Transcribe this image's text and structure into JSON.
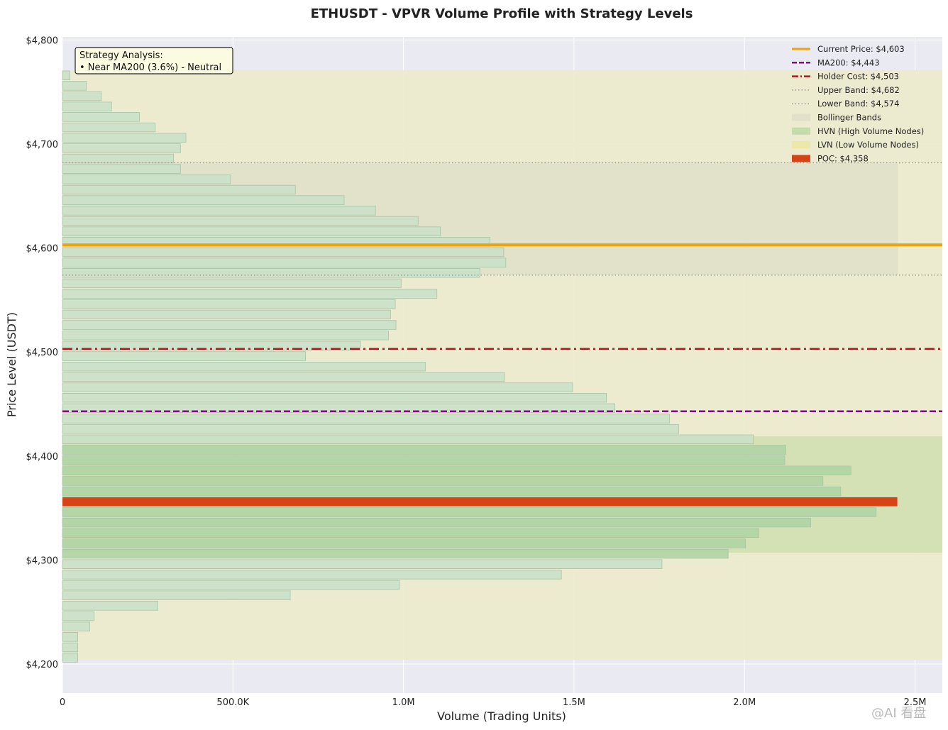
{
  "chart_data": {
    "type": "bar",
    "orientation": "horizontal",
    "title": "ETHUSDT - VPVR Volume Profile with Strategy Levels",
    "xlabel": "Volume (Trading Units)",
    "ylabel": "Price Level (USDT)",
    "xlim": [
      0,
      2580000
    ],
    "ylim": [
      4172,
      4803
    ],
    "x_ticks": [
      0,
      500000,
      1000000,
      1500000,
      2000000,
      2500000
    ],
    "x_tick_labels": [
      "0",
      "500.0K",
      "1.0M",
      "1.5M",
      "2.0M",
      "2.5M"
    ],
    "y_ticks": [
      4200,
      4300,
      4400,
      4500,
      4600,
      4700,
      4800
    ],
    "y_tick_labels": [
      "$4,200",
      "$4,300",
      "$4,400",
      "$4,500",
      "$4,600",
      "$4,700",
      "$4,800"
    ],
    "grid": true,
    "legend_position": "top-right",
    "bins": {
      "price": [
        4206,
        4216,
        4226,
        4236,
        4246,
        4256,
        4266,
        4276,
        4286,
        4296,
        4306,
        4316,
        4326,
        4336,
        4346,
        4356,
        4366,
        4376,
        4386,
        4396,
        4406,
        4416,
        4426,
        4436,
        4446,
        4456,
        4466,
        4476,
        4486,
        4496,
        4506,
        4516,
        4526,
        4536,
        4546,
        4556,
        4566,
        4576,
        4586,
        4596,
        4606,
        4616,
        4626,
        4636,
        4646,
        4656,
        4666,
        4676,
        4686,
        4696,
        4706,
        4716,
        4726,
        4736,
        4746,
        4756,
        4766
      ],
      "volume": [
        45000,
        45000,
        45000,
        80000,
        93000,
        280000,
        668000,
        988000,
        1463000,
        1758000,
        1952000,
        2003000,
        2042000,
        2194000,
        2386000,
        2448000,
        2282000,
        2230000,
        2312000,
        2118000,
        2121000,
        2026000,
        1807000,
        1780000,
        1620000,
        1595000,
        1496000,
        1296000,
        1064000,
        713000,
        874000,
        956000,
        978000,
        962000,
        976000,
        1098000,
        993000,
        1224000,
        1300000,
        1294000,
        1253000,
        1108000,
        1043000,
        918000,
        826000,
        683000,
        493000,
        346000,
        326000,
        346000,
        362000,
        272000,
        226000,
        144000,
        114000,
        70000,
        22000
      ],
      "zone": [
        "lvn",
        "lvn",
        "lvn",
        "lvn",
        "lvn",
        "lvn",
        "lvn",
        "lvn",
        "lvn",
        "lvn",
        "hvn",
        "hvn",
        "hvn",
        "hvn",
        "hvn",
        "poc",
        "hvn",
        "hvn",
        "hvn",
        "hvn",
        "hvn",
        "lvn",
        "lvn",
        "lvn",
        "lvn",
        "lvn",
        "lvn",
        "lvn",
        "lvn",
        "lvn",
        "lvn",
        "lvn",
        "lvn",
        "lvn",
        "lvn",
        "lvn",
        "lvn",
        "lvn",
        "lvn",
        "lvn",
        "lvn",
        "lvn",
        "lvn",
        "lvn",
        "lvn",
        "lvn",
        "lvn",
        "lvn",
        "lvn",
        "lvn",
        "lvn",
        "lvn",
        "lvn",
        "lvn",
        "lvn",
        "lvn",
        "lvn"
      ]
    },
    "levels": {
      "current_price": 4603,
      "ma200": 4443,
      "holder_cost": 4503,
      "upper_band": 4682,
      "lower_band": 4574,
      "poc": 4358
    },
    "zones": {
      "lvn": [
        4204,
        4771
      ],
      "hvn": [
        4307,
        4419
      ],
      "bollinger": [
        4574,
        4682
      ],
      "bollinger_x_end": 2450000
    },
    "legend": [
      {
        "label": "Current Price: $4,603",
        "style": "solid",
        "color": "#f0a30a"
      },
      {
        "label": "MA200: $4,443",
        "style": "dashed",
        "color": "#7b0f7f"
      },
      {
        "label": "Holder Cost: $4,503",
        "style": "dashdot",
        "color": "#a02020"
      },
      {
        "label": "Upper Band: $4,682",
        "style": "dotted",
        "color": "#999999"
      },
      {
        "label": "Lower Band: $4,574",
        "style": "dotted",
        "color": "#999999"
      },
      {
        "label": "Bollinger Bands",
        "style": "patch",
        "color": "#e1e1cb"
      },
      {
        "label": "HVN (High Volume Nodes)",
        "style": "patch",
        "color": "#c4dcaa"
      },
      {
        "label": "LVN (Low Volume Nodes)",
        "style": "patch",
        "color": "#ece8a8"
      },
      {
        "label": "POC: $4,358",
        "style": "patch",
        "color": "#d84315"
      }
    ],
    "annotation": {
      "line1": "Strategy Analysis:",
      "line2": "• Near MA200 (3.6%) - Neutral"
    },
    "colors": {
      "plot_bg": "#eaeaf2",
      "lvn_zone": "#ecebcc",
      "hvn_zone": "#d0e0b0",
      "bollinger": "#e1e1c9",
      "bar_fill": "#c8e0c8",
      "bar_stroke": "#a8c4a8",
      "hvn_bar_fill": "#aed4a4",
      "poc": "#d84315",
      "current_price": "#f0a30a",
      "ma200": "#7b0f7f",
      "holder_cost": "#a02020",
      "band": "#999999"
    }
  },
  "watermark": "@AI 看盘"
}
